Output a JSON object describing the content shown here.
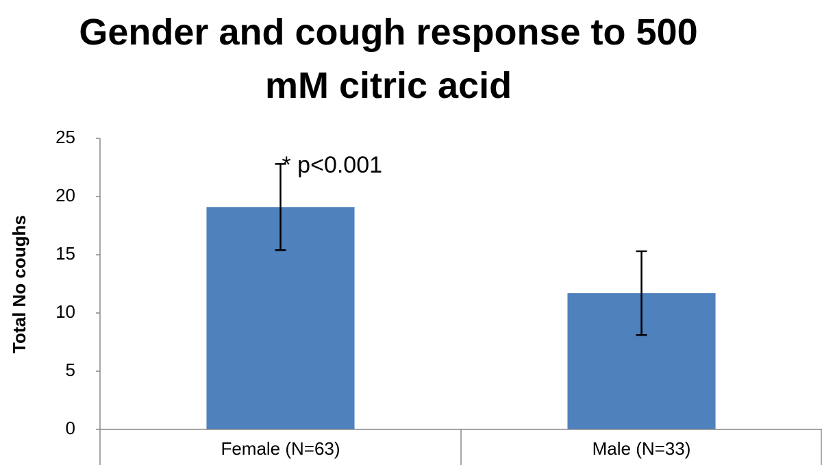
{
  "chart_data": {
    "type": "bar",
    "title": "Gender and cough response to 500 mM citric acid",
    "y_label": "Total No coughs",
    "categories": [
      "Female (N=63)",
      "Male (N=33)"
    ],
    "values": [
      19.1,
      11.7
    ],
    "errors": [
      3.7,
      3.6
    ],
    "color": "#4f81bd",
    "ylim": [
      0,
      25
    ],
    "yticks": [
      0,
      5,
      10,
      15,
      20,
      25
    ],
    "annotation": "* p<0.001"
  }
}
